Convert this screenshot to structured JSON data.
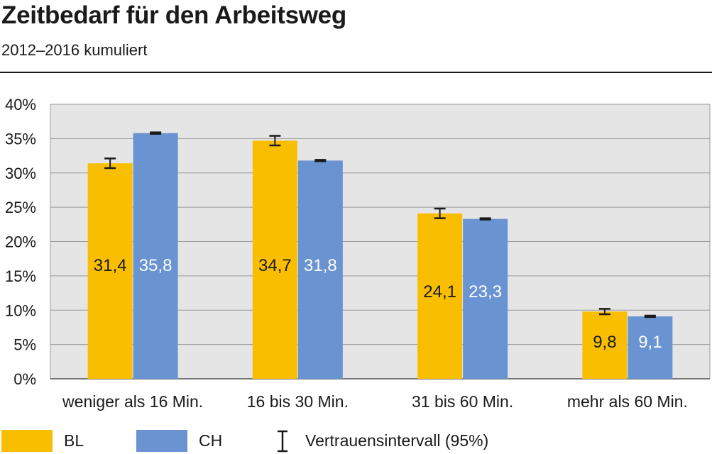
{
  "title": "Zeitbedarf für den Arbeitsweg",
  "subtitle": "2012–2016 kumuliert",
  "colors": {
    "BL": "#F9BE00",
    "CH": "#6A93D1",
    "grid": "#999999",
    "plot_bg": "#E5E5E5",
    "errorbar": "#1a1a1a"
  },
  "legend": {
    "bl_label": "BL",
    "ch_label": "CH",
    "ci_label": "Vertrauensintervall (95%)",
    "ci_icon": "errorbar-icon"
  },
  "chart_data": {
    "type": "bar",
    "title": "Zeitbedarf für den Arbeitsweg",
    "subtitle": "2012–2016 kumuliert",
    "categories": [
      "weniger als 16 Min.",
      "16 bis 30 Min.",
      "31 bis 60 Min.",
      "mehr als 60 Min."
    ],
    "series": [
      {
        "name": "BL",
        "values": [
          31.4,
          34.7,
          24.1,
          9.8
        ],
        "labels": [
          "31,4",
          "34,7",
          "24,1",
          "9,8"
        ],
        "ci_low": [
          30.7,
          34.0,
          23.4,
          9.4
        ],
        "ci_high": [
          32.1,
          35.4,
          24.8,
          10.2
        ]
      },
      {
        "name": "CH",
        "values": [
          35.8,
          31.8,
          23.3,
          9.1
        ],
        "labels": [
          "35,8",
          "31,8",
          "23,3",
          "9,1"
        ],
        "ci_low": [
          35.7,
          31.7,
          23.2,
          9.0
        ],
        "ci_high": [
          35.9,
          31.9,
          23.4,
          9.2
        ]
      }
    ],
    "yticks": [
      "0%",
      "5%",
      "10%",
      "15%",
      "20%",
      "25%",
      "30%",
      "35%",
      "40%"
    ],
    "ylim": [
      0,
      40
    ],
    "ystep": 5,
    "grid": true,
    "legend_position": "bottom"
  }
}
